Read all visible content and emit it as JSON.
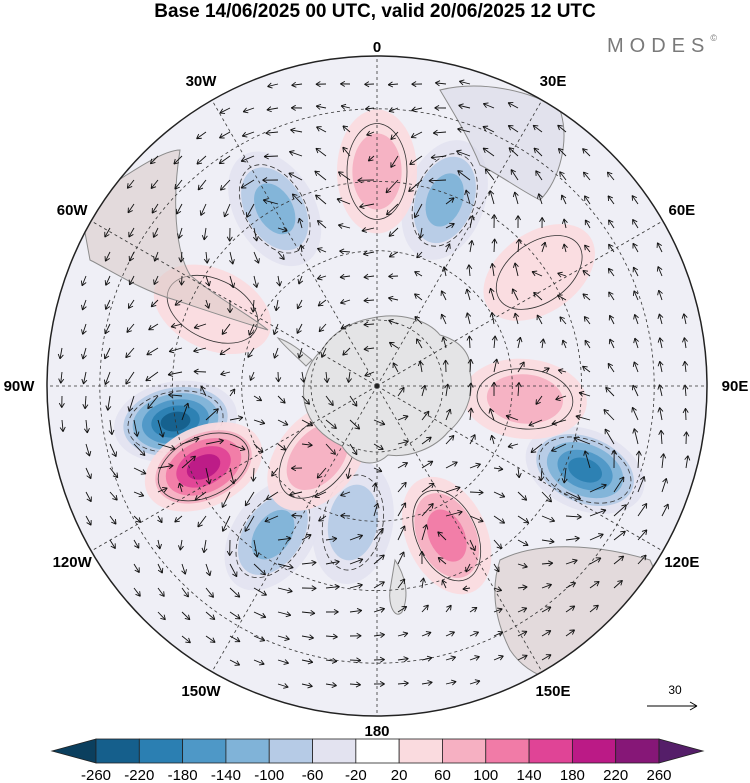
{
  "title": "Base 14/06/2025 00 UTC, valid 20/06/2025 12 UTC",
  "brand": {
    "name": "MODES",
    "mark": "©"
  },
  "map": {
    "projection": "south-polar-stereographic",
    "longitude_labels": [
      {
        "text": "0",
        "lon": 0
      },
      {
        "text": "30E",
        "lon": 30
      },
      {
        "text": "60E",
        "lon": 60
      },
      {
        "text": "90E",
        "lon": 90
      },
      {
        "text": "120E",
        "lon": 120
      },
      {
        "text": "150E",
        "lon": 150
      },
      {
        "text": "180",
        "lon": 180
      },
      {
        "text": "150W",
        "lon": -150
      },
      {
        "text": "120W",
        "lon": -120
      },
      {
        "text": "90W",
        "lon": -90
      },
      {
        "text": "60W",
        "lon": -60
      },
      {
        "text": "30W",
        "lon": -30
      }
    ],
    "wind_reference": {
      "label": "30"
    },
    "anomaly_centers": [
      {
        "lon": -100,
        "ring": 0.62,
        "value": -240
      },
      {
        "lon": -115,
        "ring": 0.58,
        "value": 220
      },
      {
        "lon": -145,
        "ring": 0.55,
        "value": -140
      },
      {
        "lon": -30,
        "ring": 0.62,
        "value": -120
      },
      {
        "lon": 20,
        "ring": 0.6,
        "value": -140
      },
      {
        "lon": 0,
        "ring": 0.65,
        "value": 100
      },
      {
        "lon": 112,
        "ring": 0.68,
        "value": -220
      },
      {
        "lon": 155,
        "ring": 0.5,
        "value": 140
      },
      {
        "lon": 95,
        "ring": 0.45,
        "value": 100
      },
      {
        "lon": 55,
        "ring": 0.6,
        "value": 60
      },
      {
        "lon": -65,
        "ring": 0.55,
        "value": 60
      },
      {
        "lon": -170,
        "ring": 0.42,
        "value": -80
      },
      {
        "lon": -140,
        "ring": 0.28,
        "value": 100
      }
    ]
  },
  "colorbar": {
    "levels": [
      "-260",
      "-220",
      "-180",
      "-140",
      "-100",
      "-60",
      "-20",
      "20",
      "60",
      "100",
      "140",
      "180",
      "220",
      "260"
    ],
    "colors": [
      "#0b3f5e",
      "#155f8c",
      "#2b7fb2",
      "#4e98c7",
      "#80b3d8",
      "#b6cbe6",
      "#e3e3f0",
      "#ffffff",
      "#fadbdf",
      "#f6b0c2",
      "#f17ba7",
      "#e04496",
      "#bb1a86",
      "#861777",
      "#551e69"
    ]
  }
}
